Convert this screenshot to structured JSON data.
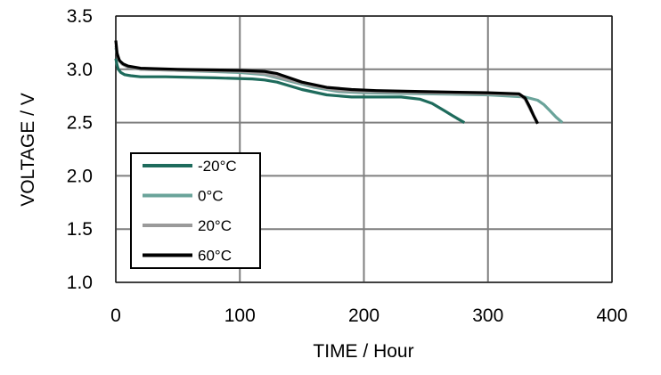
{
  "chart_data": {
    "type": "line",
    "xlabel": "TIME / Hour",
    "ylabel": "VOLTAGE / V",
    "xlim": [
      0,
      400
    ],
    "ylim": [
      1.0,
      3.5
    ],
    "x_ticks": [
      "0",
      "100",
      "200",
      "300",
      "400"
    ],
    "y_ticks": [
      "1.0",
      "1.5",
      "2.0",
      "2.5",
      "3.0",
      "3.5"
    ],
    "grid": true,
    "legend_position": "bottom-left",
    "series": [
      {
        "name": "-20°C",
        "color": "#1e6b5c",
        "x": [
          0,
          1,
          2,
          4,
          7,
          12,
          20,
          40,
          80,
          110,
          120,
          130,
          150,
          170,
          190,
          210,
          230,
          245,
          255,
          265,
          275,
          281
        ],
        "y": [
          3.1,
          3.04,
          3.0,
          2.97,
          2.95,
          2.94,
          2.93,
          2.93,
          2.92,
          2.91,
          2.9,
          2.88,
          2.81,
          2.76,
          2.74,
          2.74,
          2.74,
          2.72,
          2.68,
          2.61,
          2.54,
          2.5
        ]
      },
      {
        "name": "0°C",
        "color": "#6aa39a",
        "x": [
          0,
          2,
          5,
          10,
          20,
          50,
          100,
          120,
          140,
          160,
          180,
          200,
          250,
          300,
          330,
          340,
          345,
          350,
          355,
          360
        ],
        "y": [
          3.2,
          3.1,
          3.05,
          3.02,
          3.0,
          2.99,
          2.97,
          2.95,
          2.89,
          2.83,
          2.79,
          2.78,
          2.77,
          2.76,
          2.74,
          2.71,
          2.67,
          2.61,
          2.55,
          2.5
        ]
      },
      {
        "name": "20°C",
        "color": "#9a9a9a",
        "x": [
          0,
          2,
          5,
          10,
          20,
          50,
          100,
          120,
          140,
          160,
          180,
          200,
          250,
          300,
          325,
          330,
          335,
          340
        ],
        "y": [
          3.22,
          3.1,
          3.05,
          3.02,
          3.0,
          2.99,
          2.98,
          2.96,
          2.9,
          2.84,
          2.8,
          2.79,
          2.78,
          2.77,
          2.76,
          2.72,
          2.6,
          2.5
        ]
      },
      {
        "name": "60°C",
        "color": "#000000",
        "x": [
          0,
          1,
          3,
          6,
          10,
          20,
          50,
          100,
          120,
          130,
          150,
          170,
          190,
          210,
          250,
          300,
          325,
          330,
          334,
          337,
          340
        ],
        "y": [
          3.27,
          3.15,
          3.08,
          3.05,
          3.03,
          3.01,
          3.0,
          2.99,
          2.98,
          2.96,
          2.88,
          2.83,
          2.81,
          2.8,
          2.79,
          2.78,
          2.77,
          2.73,
          2.64,
          2.56,
          2.49
        ]
      }
    ]
  }
}
